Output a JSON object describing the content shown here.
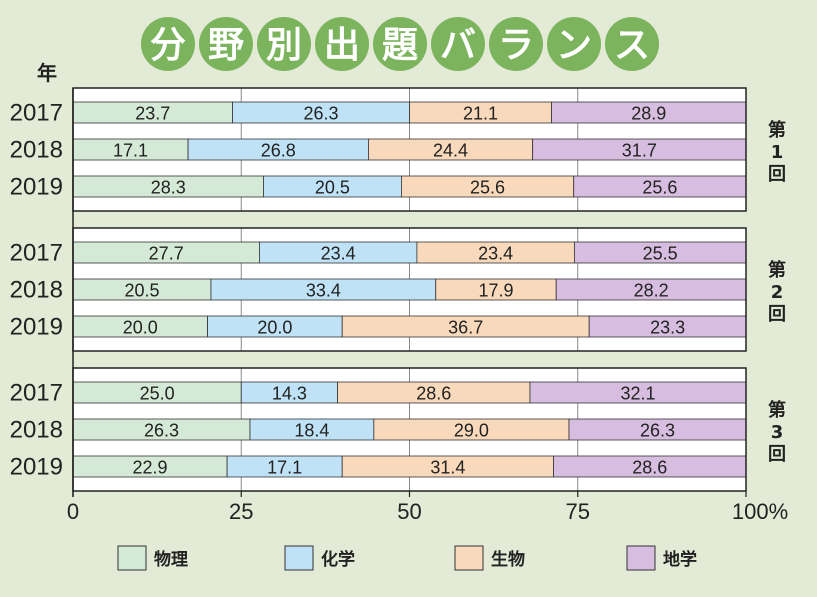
{
  "chart_data": {
    "type": "bar",
    "orientation": "horizontal",
    "stacked": true,
    "title": "分野別出題バランス",
    "ylabel": "年",
    "xlim": [
      0,
      100
    ],
    "x_ticks": [
      "0",
      "25",
      "50",
      "75",
      "100%"
    ],
    "legend_position": "bottom",
    "series": [
      {
        "name": "物理",
        "color": "#d4ead7"
      },
      {
        "name": "化学",
        "color": "#bfe2f6"
      },
      {
        "name": "生物",
        "color": "#f9d9bb"
      },
      {
        "name": "地学",
        "color": "#d7bde0"
      }
    ],
    "groups": [
      {
        "label": [
          "第",
          "1",
          "回"
        ],
        "rows": [
          {
            "year": "2017",
            "values": [
              23.7,
              26.3,
              21.1,
              28.9
            ],
            "labels": [
              "23.7",
              "26.3",
              "21.1",
              "28.9"
            ]
          },
          {
            "year": "2018",
            "values": [
              17.1,
              26.8,
              24.4,
              31.7
            ],
            "labels": [
              "17.1",
              "26.8",
              "24.4",
              "31.7"
            ]
          },
          {
            "year": "2019",
            "values": [
              28.3,
              20.5,
              25.6,
              25.6
            ],
            "labels": [
              "28.3",
              "20.5",
              "25.6",
              "25.6"
            ]
          }
        ]
      },
      {
        "label": [
          "第",
          "2",
          "回"
        ],
        "rows": [
          {
            "year": "2017",
            "values": [
              27.7,
              23.4,
              23.4,
              25.5
            ],
            "labels": [
              "27.7",
              "23.4",
              "23.4",
              "25.5"
            ]
          },
          {
            "year": "2018",
            "values": [
              20.5,
              33.4,
              17.9,
              28.2
            ],
            "labels": [
              "20.5",
              "33.4",
              "17.9",
              "28.2"
            ]
          },
          {
            "year": "2019",
            "values": [
              20.0,
              20.0,
              36.7,
              23.3
            ],
            "labels": [
              "20.0",
              "20.0",
              "36.7",
              "23.3"
            ]
          }
        ]
      },
      {
        "label": [
          "第",
          "3",
          "回"
        ],
        "rows": [
          {
            "year": "2017",
            "values": [
              25.0,
              14.3,
              28.6,
              32.1
            ],
            "labels": [
              "25.0",
              "14.3",
              "28.6",
              "32.1"
            ]
          },
          {
            "year": "2018",
            "values": [
              26.3,
              18.4,
              29.0,
              26.3
            ],
            "labels": [
              "26.3",
              "18.4",
              "29.0",
              "26.3"
            ]
          },
          {
            "year": "2019",
            "values": [
              22.9,
              17.1,
              31.4,
              28.6
            ],
            "labels": [
              "22.9",
              "17.1",
              "31.4",
              "28.6"
            ]
          }
        ]
      }
    ]
  },
  "colors": {
    "title_circle": "#7cb45d",
    "frame": "#222222",
    "grid": "#888888"
  }
}
